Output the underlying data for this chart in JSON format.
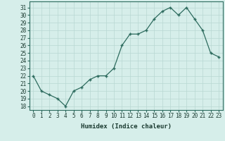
{
  "x": [
    0,
    1,
    2,
    3,
    4,
    5,
    6,
    7,
    8,
    9,
    10,
    11,
    12,
    13,
    14,
    15,
    16,
    17,
    18,
    19,
    20,
    21,
    22,
    23
  ],
  "y": [
    22,
    20,
    19.5,
    19,
    18,
    20,
    20.5,
    21.5,
    22,
    22,
    23,
    26,
    27.5,
    27.5,
    28,
    29.5,
    30.5,
    31,
    30,
    31,
    29.5,
    28,
    25,
    24.5
  ],
  "line_color": "#2d6b5e",
  "marker_color": "#2d6b5e",
  "bg_color": "#d6eeea",
  "grid_color": "#b8d8d2",
  "xlabel": "Humidex (Indice chaleur)",
  "xlim": [
    -0.5,
    23.5
  ],
  "ylim": [
    17.5,
    31.8
  ],
  "yticks": [
    18,
    19,
    20,
    21,
    22,
    23,
    24,
    25,
    26,
    27,
    28,
    29,
    30,
    31
  ],
  "xticks": [
    0,
    1,
    2,
    3,
    4,
    5,
    6,
    7,
    8,
    9,
    10,
    11,
    12,
    13,
    14,
    15,
    16,
    17,
    18,
    19,
    20,
    21,
    22,
    23
  ],
  "tick_fontsize": 5.5,
  "xlabel_fontsize": 6.5
}
